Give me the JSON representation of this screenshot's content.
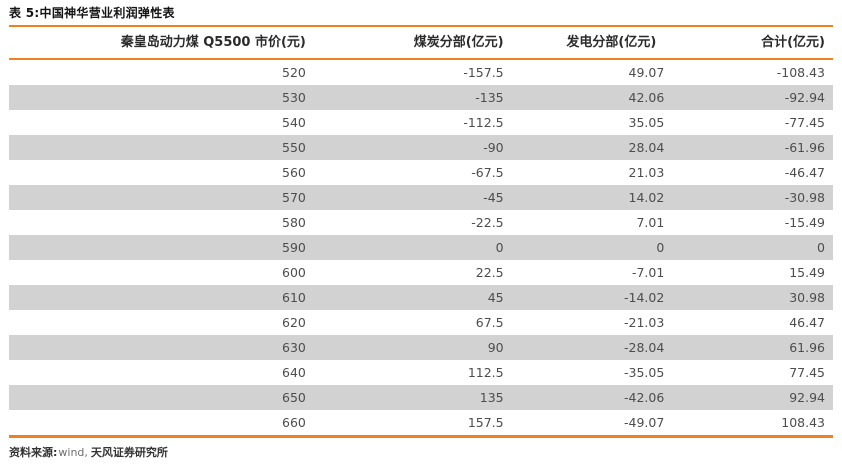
{
  "title": "表 5:中国神华营业利润弹性表",
  "table": {
    "headers": [
      "秦皇岛动力煤 Q5500 市价(元)",
      "煤炭分部(亿元)",
      "发电分部(亿元)",
      "合计(亿元)"
    ],
    "rows": [
      [
        "520",
        "-157.5",
        "49.07",
        "-108.43"
      ],
      [
        "530",
        "-135",
        "42.06",
        "-92.94"
      ],
      [
        "540",
        "-112.5",
        "35.05",
        "-77.45"
      ],
      [
        "550",
        "-90",
        "28.04",
        "-61.96"
      ],
      [
        "560",
        "-67.5",
        "21.03",
        "-46.47"
      ],
      [
        "570",
        "-45",
        "14.02",
        "-30.98"
      ],
      [
        "580",
        "-22.5",
        "7.01",
        "-15.49"
      ],
      [
        "590",
        "0",
        "0",
        "0"
      ],
      [
        "600",
        "22.5",
        "-7.01",
        "15.49"
      ],
      [
        "610",
        "45",
        "-14.02",
        "30.98"
      ],
      [
        "620",
        "67.5",
        "-21.03",
        "46.47"
      ],
      [
        "630",
        "90",
        "-28.04",
        "61.96"
      ],
      [
        "640",
        "112.5",
        "-35.05",
        "77.45"
      ],
      [
        "650",
        "135",
        "-42.06",
        "92.94"
      ],
      [
        "660",
        "157.5",
        "-49.07",
        "108.43"
      ]
    ],
    "column_names": [
      "cell-coal-price",
      "cell-coal-segment",
      "cell-power-segment",
      "cell-total"
    ]
  },
  "footer": {
    "source_label": "资料来源:",
    "source_wind": "wind,",
    "source_org": "天风证券研究所"
  },
  "colors": {
    "accent_orange": "#EF821F",
    "stripe_gray": "#D2D2D2",
    "data_text": "#4D4D4D",
    "header_text": "#2B2B2B"
  }
}
